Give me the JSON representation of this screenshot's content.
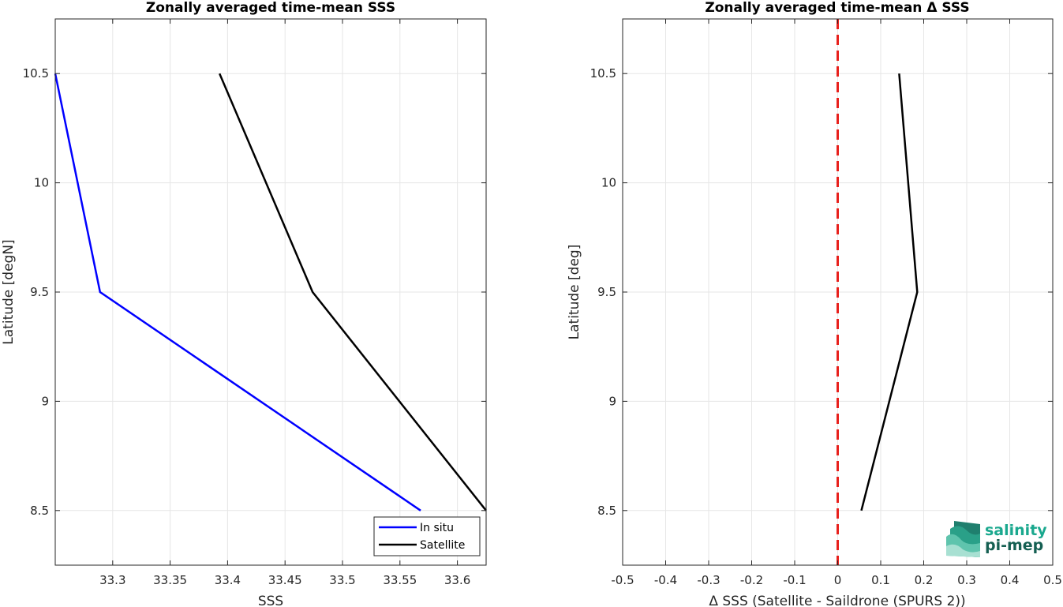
{
  "chart_data": [
    {
      "type": "line",
      "title": "Zonally averaged time-mean SSS",
      "xlabel": "SSS",
      "ylabel": "Latitude [degN]",
      "xlim": [
        33.25,
        33.625
      ],
      "ylim": [
        8.25,
        10.75
      ],
      "xticks": [
        33.3,
        33.35,
        33.4,
        33.45,
        33.5,
        33.55,
        33.6
      ],
      "xtick_labels": [
        "33.3",
        "33.35",
        "33.4",
        "33.45",
        "33.5",
        "33.55",
        "33.6"
      ],
      "yticks": [
        8.5,
        9,
        9.5,
        10,
        10.5
      ],
      "ytick_labels": [
        "8.5",
        "9",
        "9.5",
        "10",
        "10.5"
      ],
      "grid": true,
      "legend_position": "bottom-right",
      "series": [
        {
          "name": "In situ",
          "color": "#0000ff",
          "x": [
            33.25,
            33.289,
            33.568
          ],
          "y": [
            10.5,
            9.5,
            8.5
          ]
        },
        {
          "name": "Satellite",
          "color": "#000000",
          "x": [
            33.393,
            33.474,
            33.625
          ],
          "y": [
            10.5,
            9.5,
            8.5
          ]
        }
      ]
    },
    {
      "type": "line",
      "title": "Zonally averaged time-mean Δ SSS",
      "xlabel": "Δ SSS (Satellite - Saildrone (SPURS 2))",
      "ylabel": "Latitude [deg]",
      "xlim": [
        -0.5,
        0.5
      ],
      "ylim": [
        8.25,
        10.75
      ],
      "xticks": [
        -0.5,
        -0.4,
        -0.3,
        -0.2,
        -0.1,
        0,
        0.1,
        0.2,
        0.3,
        0.4,
        0.5
      ],
      "xtick_labels": [
        "-0.5",
        "-0.4",
        "-0.3",
        "-0.2",
        "-0.1",
        "0",
        "0.1",
        "0.2",
        "0.3",
        "0.4",
        "0.5"
      ],
      "yticks": [
        8.5,
        9,
        9.5,
        10,
        10.5
      ],
      "ytick_labels": [
        "8.5",
        "9",
        "9.5",
        "10",
        "10.5"
      ],
      "grid": true,
      "reference_line": {
        "x": 0,
        "color": "#e8201c",
        "style": "dashed"
      },
      "series": [
        {
          "color": "#000000",
          "x": [
            0.143,
            0.185,
            0.055
          ],
          "y": [
            10.5,
            9.5,
            8.5
          ]
        }
      ]
    }
  ],
  "logo": {
    "line1": "salinity",
    "line2": "pi-mep",
    "color": "#1aa88e"
  }
}
